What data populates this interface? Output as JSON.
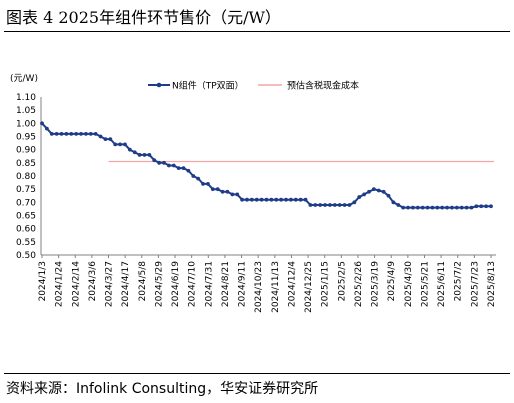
{
  "figure": {
    "title": "图表 4   2025年组件环节售价（元/W）",
    "source": "资料来源：Infolink Consulting，华安证券研究所"
  },
  "chart_data": {
    "type": "line",
    "unit_label": "(元/W)",
    "ylim": [
      0.5,
      1.1
    ],
    "yticks": [
      "0.50",
      "0.55",
      "0.60",
      "0.65",
      "0.70",
      "0.75",
      "0.80",
      "0.85",
      "0.90",
      "0.95",
      "1.00",
      "1.05",
      "1.10"
    ],
    "grid": false,
    "legend_position": "top",
    "x_tick_labels": [
      "2024/1/3",
      "2024/1/24",
      "2024/2/14",
      "2024/3/6",
      "2024/3/27",
      "2024/4/17",
      "2024/5/8",
      "2024/5/29",
      "2024/6/19",
      "2024/7/10",
      "2024/7/31",
      "2024/8/21",
      "2024/9/11",
      "2024/10/23",
      "2024/11/13",
      "2024/12/4",
      "2024/12/25",
      "2025/1/15",
      "2025/2/5",
      "2025/2/26",
      "2025/3/19",
      "2025/4/9",
      "2025/4/30",
      "2025/5/21",
      "2025/6/11",
      "2025/7/2",
      "2025/7/23",
      "2025/8/13"
    ],
    "series": [
      {
        "name": "N组件（TP双面）",
        "color": "#1f3c88",
        "marker": "circle",
        "values": [
          1.0,
          0.98,
          0.96,
          0.96,
          0.96,
          0.96,
          0.96,
          0.96,
          0.96,
          0.96,
          0.96,
          0.96,
          0.95,
          0.94,
          0.94,
          0.92,
          0.92,
          0.92,
          0.9,
          0.89,
          0.88,
          0.88,
          0.88,
          0.86,
          0.85,
          0.85,
          0.84,
          0.84,
          0.83,
          0.83,
          0.82,
          0.8,
          0.79,
          0.77,
          0.77,
          0.75,
          0.75,
          0.74,
          0.74,
          0.73,
          0.73,
          0.71,
          0.71,
          0.71,
          0.71,
          0.71,
          0.71,
          0.71,
          0.71,
          0.71,
          0.71,
          0.71,
          0.71,
          0.71,
          0.71,
          0.69,
          0.69,
          0.69,
          0.69,
          0.69,
          0.69,
          0.69,
          0.69,
          0.69,
          0.7,
          0.72,
          0.73,
          0.74,
          0.75,
          0.745,
          0.74,
          0.725,
          0.7,
          0.69,
          0.68,
          0.68,
          0.68,
          0.68,
          0.68,
          0.68,
          0.68,
          0.68,
          0.68,
          0.68,
          0.68,
          0.68,
          0.68,
          0.68,
          0.68,
          0.685,
          0.685,
          0.685,
          0.685
        ]
      },
      {
        "name": "预估含税现金成本",
        "color": "#f4a6a6",
        "marker": "none",
        "value": 0.855,
        "start_label": "2024/3/27"
      }
    ]
  }
}
